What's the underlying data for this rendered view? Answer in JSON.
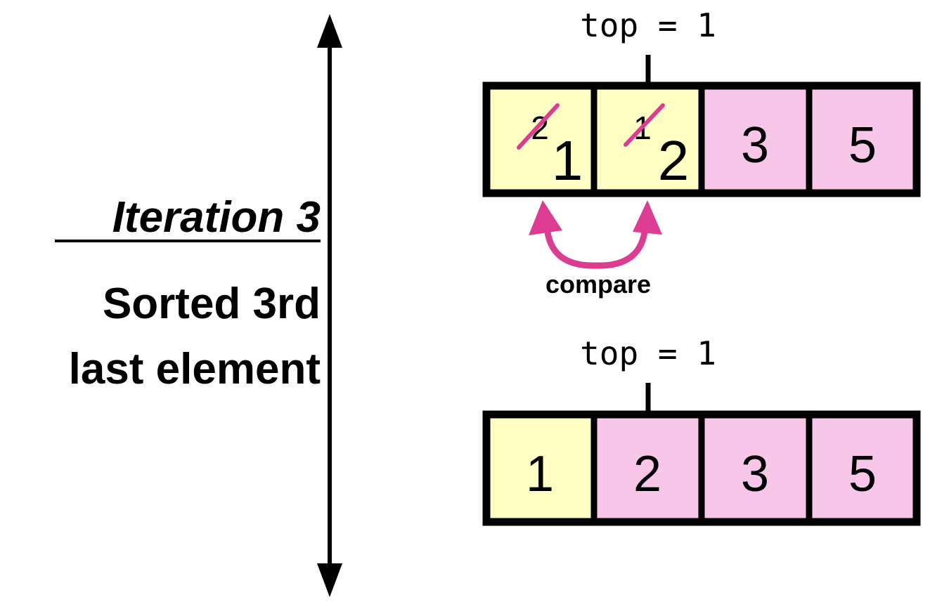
{
  "left_panel": {
    "title": "Iteration 3",
    "subtitle_line1": "Sorted 3rd",
    "subtitle_line2": "last element"
  },
  "top_array": {
    "pointer_label": "top = 1",
    "cells": [
      {
        "old_value": "2",
        "new_value": "1",
        "state": "swapped"
      },
      {
        "old_value": "1",
        "new_value": "2",
        "state": "swapped"
      },
      {
        "value": "3",
        "state": "sorted"
      },
      {
        "value": "5",
        "state": "sorted"
      }
    ],
    "compare_label": "compare"
  },
  "bottom_array": {
    "pointer_label": "top = 1",
    "cells": [
      {
        "value": "1",
        "state": "unsorted"
      },
      {
        "value": "2",
        "state": "sorted"
      },
      {
        "value": "3",
        "state": "sorted"
      },
      {
        "value": "5",
        "state": "sorted"
      }
    ]
  },
  "colors": {
    "unsorted_fill": "#ffffc4",
    "sorted_fill": "#f7c6e8",
    "accent": "#dc3c91",
    "stroke": "#000000"
  }
}
